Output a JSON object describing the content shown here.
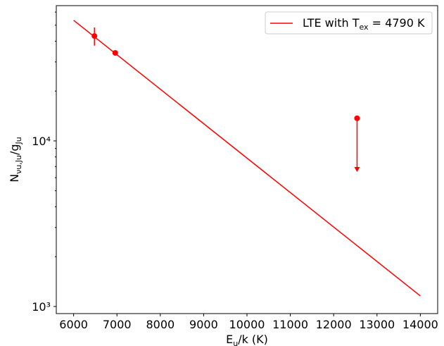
{
  "chart_data": {
    "type": "line",
    "xlabel": [
      {
        "text": "E"
      },
      {
        "text": "u",
        "sub": true
      },
      {
        "text": "/k (K)"
      }
    ],
    "ylabel": [
      {
        "text": "N"
      },
      {
        "text": "νu,Ju",
        "sub": true
      },
      {
        "text": "/g"
      },
      {
        "text": "Ju",
        "sub": true
      }
    ],
    "series": [
      {
        "name": [
          {
            "text": "LTE with T"
          },
          {
            "text": "ex",
            "sub": true
          },
          {
            "text": " = 4790 K"
          }
        ],
        "color": "#ff0000",
        "x": [
          6000,
          14000
        ],
        "values": [
          53500,
          1158
        ]
      }
    ],
    "points": {
      "color": "#ff0000",
      "x": [
        6480,
        6960
      ],
      "values": [
        43000,
        34000
      ],
      "errors": [
        5400,
        0
      ]
    },
    "upper_limits": {
      "color": "#ff0000",
      "x": [
        12540
      ],
      "values": [
        13700
      ],
      "limit_ends": [
        6560
      ]
    },
    "xlim": [
      5600,
      14400
    ],
    "xticks": [
      6000,
      7000,
      8000,
      9000,
      10000,
      11000,
      12000,
      13000,
      14000
    ],
    "ylim": [
      906,
      65600
    ],
    "log_y": true,
    "yticks": [
      {
        "value": 1000,
        "label": "10³"
      },
      {
        "value": 10000,
        "label": "10⁴"
      }
    ],
    "yminorticks": [
      2000,
      3000,
      4000,
      5000,
      6000,
      7000,
      8000,
      9000,
      20000,
      30000,
      40000,
      50000,
      60000
    ],
    "legend": "upper right"
  }
}
